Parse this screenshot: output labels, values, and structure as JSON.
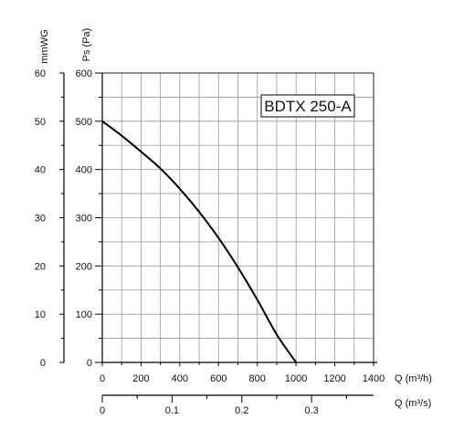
{
  "chart_data": {
    "type": "line",
    "model_label": "BDTX 250-A",
    "axes": {
      "x_flow_m3h": {
        "label": "Q (m³/h)",
        "range": [
          0,
          1400
        ],
        "ticks": [
          {
            "value": 0,
            "label": "0"
          },
          {
            "value": 200,
            "label": "200"
          },
          {
            "value": 400,
            "label": "400"
          },
          {
            "value": 600,
            "label": "600"
          },
          {
            "value": 800,
            "label": "800"
          },
          {
            "value": 1000,
            "label": "1000"
          },
          {
            "value": 1200,
            "label": "1200"
          },
          {
            "value": 1400,
            "label": "1400"
          }
        ]
      },
      "x_flow_m3s": {
        "label": "Q (m³/s)",
        "range": [
          0,
          0.3889
        ],
        "ticks": [
          {
            "value": 0,
            "label": "0"
          },
          {
            "value": 0.1,
            "label": "0.1"
          },
          {
            "value": 0.2,
            "label": "0.2"
          },
          {
            "value": 0.3,
            "label": "0.3"
          }
        ]
      },
      "y_pressure_pa": {
        "label": "Ps (Pa)",
        "range": [
          0,
          600
        ],
        "ticks": [
          {
            "value": 0,
            "label": "0"
          },
          {
            "value": 100,
            "label": "100"
          },
          {
            "value": 200,
            "label": "200"
          },
          {
            "value": 300,
            "label": "300"
          },
          {
            "value": 400,
            "label": "400"
          },
          {
            "value": 500,
            "label": "500"
          },
          {
            "value": 600,
            "label": "600"
          }
        ]
      },
      "y_pressure_mmwg": {
        "label": "mmWG",
        "range": [
          0,
          60
        ],
        "ticks": [
          {
            "value": 0,
            "label": "0"
          },
          {
            "value": 10,
            "label": "10"
          },
          {
            "value": 20,
            "label": "20"
          },
          {
            "value": 30,
            "label": "30"
          },
          {
            "value": 40,
            "label": "40"
          },
          {
            "value": 50,
            "label": "50"
          },
          {
            "value": 60,
            "label": "60"
          }
        ]
      }
    },
    "grid": true,
    "series": [
      {
        "color": "#000000",
        "points": [
          {
            "x": 0,
            "y": 500
          },
          {
            "x": 100,
            "y": 470
          },
          {
            "x": 200,
            "y": 437
          },
          {
            "x": 300,
            "y": 402
          },
          {
            "x": 400,
            "y": 360
          },
          {
            "x": 500,
            "y": 312
          },
          {
            "x": 600,
            "y": 258
          },
          {
            "x": 700,
            "y": 197
          },
          {
            "x": 800,
            "y": 130
          },
          {
            "x": 900,
            "y": 58
          },
          {
            "x": 1000,
            "y": 0
          }
        ]
      }
    ]
  }
}
